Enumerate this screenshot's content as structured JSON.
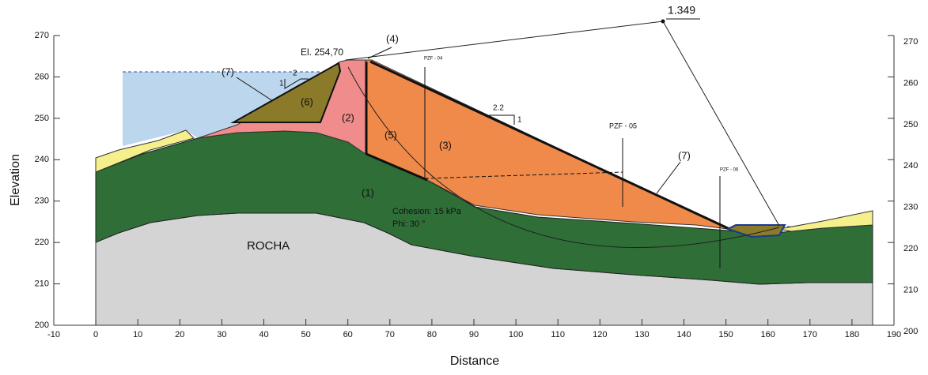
{
  "axes": {
    "x_label": "Distance",
    "y_label": "Elevation",
    "xticks": [
      -10,
      0,
      10,
      20,
      30,
      40,
      50,
      60,
      70,
      80,
      90,
      100,
      110,
      120,
      130,
      140,
      150,
      160,
      170,
      180,
      190
    ],
    "yticks": [
      200,
      210,
      220,
      230,
      240,
      250,
      260,
      270
    ]
  },
  "factor_of_safety": "1.349",
  "crest_label": "El. 254,70",
  "zones": {
    "z4": "(4)",
    "z7_left": "(7)",
    "z6": "(6)",
    "z2": "(2)",
    "z5": "(5)",
    "z3": "(3)",
    "z1": "(1)",
    "z7_right": "(7)",
    "rock": "ROCHA"
  },
  "strength": {
    "cohesion": "Cohesion: 15 kPa",
    "phi": "Phi: 30 °"
  },
  "piezometers": {
    "p4": "PZF - 04",
    "p5": "PZF - 05",
    "p6": "PZF - 06"
  },
  "slopes": {
    "up_h": "2",
    "up_v": "1",
    "down_h": "2.2",
    "down_v": "1"
  }
}
